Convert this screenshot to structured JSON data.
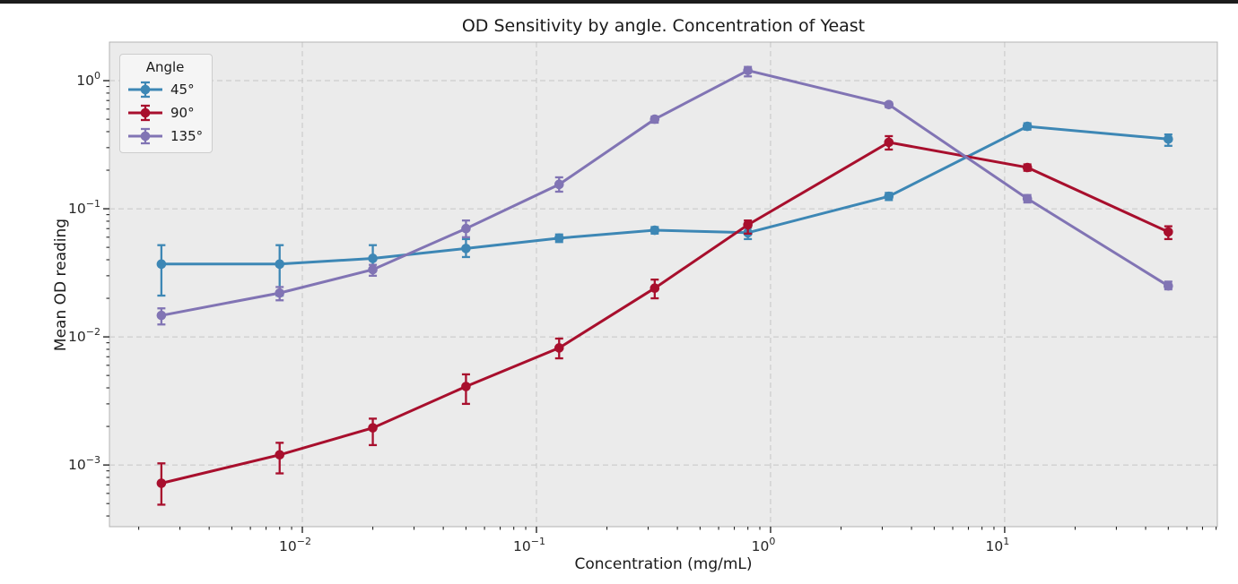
{
  "window": {
    "top_border_color": "#1c1c1c"
  },
  "colors": {
    "plot_bg": "#ebebeb",
    "grid": "#c6c6c6",
    "spine": "#b3b3b3",
    "tick": "#262626",
    "text": "#1a1a1a",
    "legend_bg": "#f5f5f5",
    "legend_border": "#cdcdcd"
  },
  "chart_data": {
    "type": "line",
    "title": "OD Sensitivity by angle. Concentration of Yeast",
    "xlabel": "Concentration (mg/mL)",
    "ylabel": "Mean OD reading",
    "x_scale": "log",
    "y_scale": "log",
    "xlim": [
      0.0015,
      81
    ],
    "ylim": [
      0.00033,
      2.0
    ],
    "x_major_tick_exponents": [
      -2,
      -1,
      0,
      1
    ],
    "y_major_tick_exponents": [
      0,
      -1,
      -2,
      -3
    ],
    "grid": "dashed lines at major decades, both axes",
    "legend": {
      "title": "Angle",
      "position": "upper-left"
    },
    "x": [
      0.0025,
      0.008,
      0.02,
      0.05,
      0.125,
      0.32,
      0.8,
      3.2,
      12.5,
      50
    ],
    "series": [
      {
        "name": "45°",
        "color": "#3d87b5",
        "values": [
          0.037,
          0.037,
          0.041,
          0.049,
          0.059,
          0.068,
          0.065,
          0.125,
          0.44,
          0.35
        ],
        "err_hi": [
          0.015,
          0.015,
          0.011,
          0.009,
          0.004,
          0.004,
          0.006,
          0.008,
          0.025,
          0.03
        ],
        "err_lo": [
          0.016,
          0.016,
          0.008,
          0.007,
          0.004,
          0.004,
          0.007,
          0.008,
          0.025,
          0.04
        ]
      },
      {
        "name": "90°",
        "color": "#a80f2d",
        "values": [
          0.00072,
          0.0012,
          0.00195,
          0.0041,
          0.0082,
          0.024,
          0.075,
          0.33,
          0.21,
          0.066
        ],
        "err_hi": [
          0.00031,
          0.00029,
          0.00035,
          0.001,
          0.0015,
          0.004,
          0.006,
          0.039,
          0.012,
          0.007
        ],
        "err_lo": [
          0.00023,
          0.00034,
          0.00052,
          0.0011,
          0.0014,
          0.004,
          0.011,
          0.04,
          0.012,
          0.008
        ]
      },
      {
        "name": "135°",
        "color": "#8174b4",
        "values": [
          0.0147,
          0.022,
          0.0335,
          0.07,
          0.155,
          0.5,
          1.2,
          0.65,
          0.12,
          0.025
        ],
        "err_hi": [
          0.002,
          0.0025,
          0.003,
          0.011,
          0.021,
          0.025,
          0.08,
          0.026,
          0.008,
          0.002
        ],
        "err_lo": [
          0.0022,
          0.0027,
          0.0035,
          0.01,
          0.019,
          0.03,
          0.12,
          0.03,
          0.008,
          0.0015
        ]
      }
    ]
  }
}
